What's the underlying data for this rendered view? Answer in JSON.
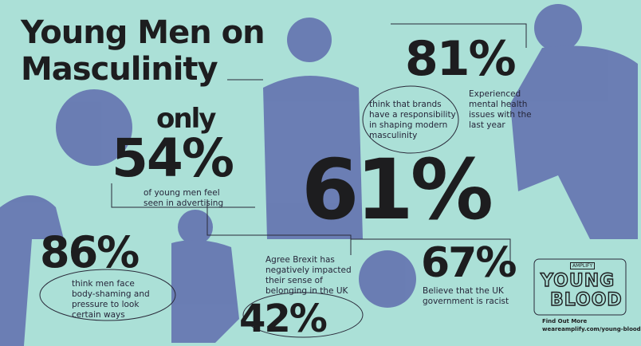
{
  "title": [
    "Young Men on",
    "Masculinity"
  ],
  "stats": [
    {
      "prefix": "only",
      "value": "54%",
      "caption": "of young men feel seen in advertising"
    },
    {
      "value": "81%",
      "caption": "Experienced mental health issues with the last year"
    },
    {
      "value": "61%",
      "caption": "think that brands have a responsibility in shaping modern masculinity"
    },
    {
      "value": "86%",
      "caption": "think men face body-shaming and pressure to look certain ways"
    },
    {
      "value": "42%",
      "caption": "Agree Brexit has negatively impacted their sense of belonging in the UK"
    },
    {
      "value": "67%",
      "caption": "Believe that the UK government is racist"
    }
  ],
  "logo": {
    "brand": "AMPLIFY",
    "lines": [
      "YOUNG",
      "BLOOD"
    ],
    "cta": "Find Out More",
    "url": "weareamplify.com/young-blood"
  }
}
